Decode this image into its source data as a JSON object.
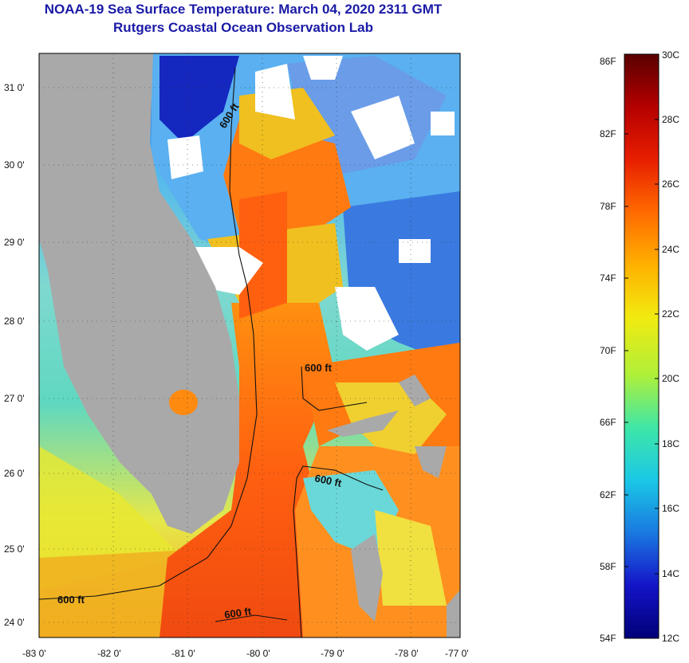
{
  "header": {
    "title": "NOAA-19 Sea Surface Temperature:  March 04, 2020 2311 GMT",
    "subtitle": "Rutgers Coastal Ocean Observation Lab"
  },
  "map": {
    "lat_ticks": [
      "31 0'",
      "30 0'",
      "29 0'",
      "28 0'",
      "27 0'",
      "26 0'",
      "25 0'",
      "24 0'"
    ],
    "lon_ticks": [
      "-83 0'",
      "-82 0'",
      "-81 0'",
      "-80 0'",
      "-79 0'",
      "-78 0'",
      "-77 0'"
    ],
    "isobath_labels": [
      "600 ft",
      "600 ft",
      "600 ft",
      "600 ft",
      "600 ft"
    ],
    "land_color": "#a9a9a9",
    "cloud_color": "#ffffff"
  },
  "colorbar": {
    "fahrenheit": [
      "86F",
      "82F",
      "78F",
      "74F",
      "70F",
      "66F",
      "62F",
      "58F",
      "54F"
    ],
    "celsius": [
      "30C",
      "28C",
      "26C",
      "24C",
      "22C",
      "20C",
      "18C",
      "16C",
      "14C",
      "12C"
    ],
    "colors": [
      "#5a0000",
      "#b40000",
      "#e81e00",
      "#ff6a00",
      "#ffb000",
      "#f2ea10",
      "#aef03a",
      "#3ee6a8",
      "#1ac8e6",
      "#1a78e0",
      "#1414c8",
      "#000078"
    ]
  }
}
